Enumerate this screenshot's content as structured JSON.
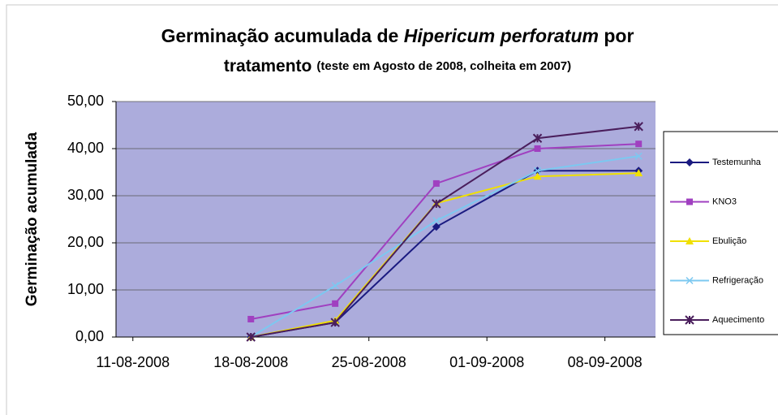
{
  "chart_data": {
    "type": "line",
    "title": {
      "pre": "Germinação acumulada de ",
      "italic": "Hipericum perforatum",
      "post": " por",
      "line2": "tratamento",
      "note": "(teste em Agosto de 2008, colheita em 2007)"
    },
    "y_label": "Germinação acumulada",
    "x": [
      "18-08-2008",
      "23-08-2008",
      "29-08-2008",
      "04-09-2008",
      "10-09-2008"
    ],
    "xlim": [
      "10-08-2008",
      "11-09-2008"
    ],
    "xticks": [
      "11-08-2008",
      "18-08-2008",
      "25-08-2008",
      "01-09-2008",
      "08-09-2008"
    ],
    "ylim": [
      0,
      50
    ],
    "yticks": [
      {
        "value": 0,
        "label": "0,00"
      },
      {
        "value": 10,
        "label": "10,00"
      },
      {
        "value": 20,
        "label": "20,00"
      },
      {
        "value": 30,
        "label": "30,00"
      },
      {
        "value": 40,
        "label": "40,00"
      },
      {
        "value": 50,
        "label": "50,00"
      }
    ],
    "grid": true,
    "legend": "right",
    "series": [
      {
        "name": "Testemunha",
        "color": "#1a1a80",
        "marker": "diamond",
        "values": [
          0,
          3.1,
          23.4,
          35.3,
          35.3
        ]
      },
      {
        "name": "KNO3",
        "color": "#a040c0",
        "marker": "square",
        "values": [
          3.8,
          7.1,
          32.6,
          40,
          41
        ]
      },
      {
        "name": "Ebulição",
        "color": "#f0e000",
        "marker": "triangle",
        "values": [
          0,
          3.5,
          28.4,
          34.1,
          34.8
        ]
      },
      {
        "name": "Refrigeração",
        "color": "#7cc8f0",
        "marker": "x",
        "values": [
          0,
          10.9,
          24.7,
          35.3,
          38.4
        ]
      },
      {
        "name": "Aquecimento",
        "color": "#4a1e5c",
        "marker": "star",
        "values": [
          0,
          3.1,
          28.3,
          42.2,
          44.7
        ]
      }
    ]
  }
}
